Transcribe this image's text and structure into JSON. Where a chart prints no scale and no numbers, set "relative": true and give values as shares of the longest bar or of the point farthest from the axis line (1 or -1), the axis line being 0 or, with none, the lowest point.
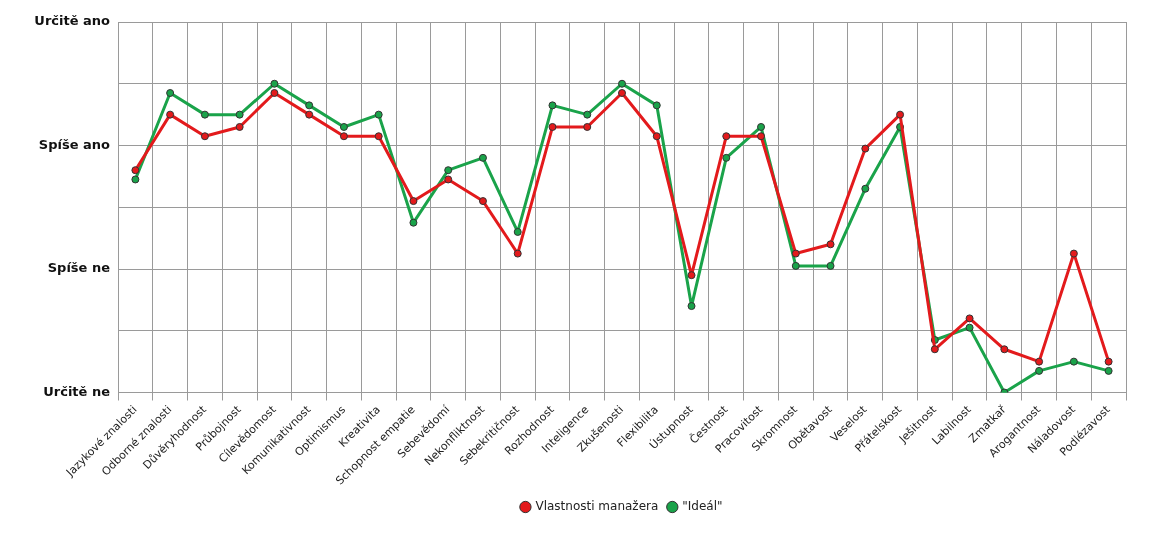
{
  "chart_data": {
    "type": "line",
    "categories": [
      "Jazykové znalosti",
      "Odborné znalosti",
      "Důvěryhodnost",
      "Průbojnost",
      "Cílevědomost",
      "Komunikativnost",
      "Optimismus",
      "Kreativita",
      "Schopnost empatie",
      "Sebevědomí",
      "Nekonfliktnost",
      "Sebekritičnost",
      "Rozhodnost",
      "Inteligence",
      "Zkušenosti",
      "Flexibilita",
      "Ústupnost",
      "Čestnost",
      "Pracovitost",
      "Skromnost",
      "Obětavost",
      "Veselost",
      "Přátelskost",
      "Ješitnost",
      "Labilnost",
      "Zmatkař",
      "Arogantnost",
      "Náladovost",
      "Podlézavost"
    ],
    "series": [
      {
        "name": "Vlastnosti manažera",
        "color": "#e31a1c",
        "values": [
          0.72,
          0.9,
          0.83,
          0.86,
          0.97,
          0.9,
          0.83,
          0.83,
          0.62,
          0.69,
          0.62,
          0.45,
          0.86,
          0.86,
          0.97,
          0.83,
          0.38,
          0.83,
          0.83,
          0.45,
          0.48,
          0.79,
          0.9,
          0.14,
          0.24,
          0.14,
          0.1,
          0.45,
          0.1
        ]
      },
      {
        "name": "\"Ideál\"",
        "color": "#1aa34a",
        "values": [
          0.69,
          0.97,
          0.9,
          0.9,
          1,
          0.93,
          0.86,
          0.9,
          0.55,
          0.72,
          0.76,
          0.52,
          0.93,
          0.9,
          1,
          0.93,
          0.28,
          0.76,
          0.86,
          0.41,
          0.41,
          0.66,
          0.86,
          0.17,
          0.21,
          0,
          0.07,
          0.1,
          0.07
        ]
      }
    ],
    "relative": true,
    "annotations": [
      "Určitě ano",
      "Spíše ano",
      "Spíše ne",
      "Určitě ne"
    ],
    "grid": true,
    "legend": "bottom",
    "marker": "circle",
    "line_style": "solid"
  }
}
